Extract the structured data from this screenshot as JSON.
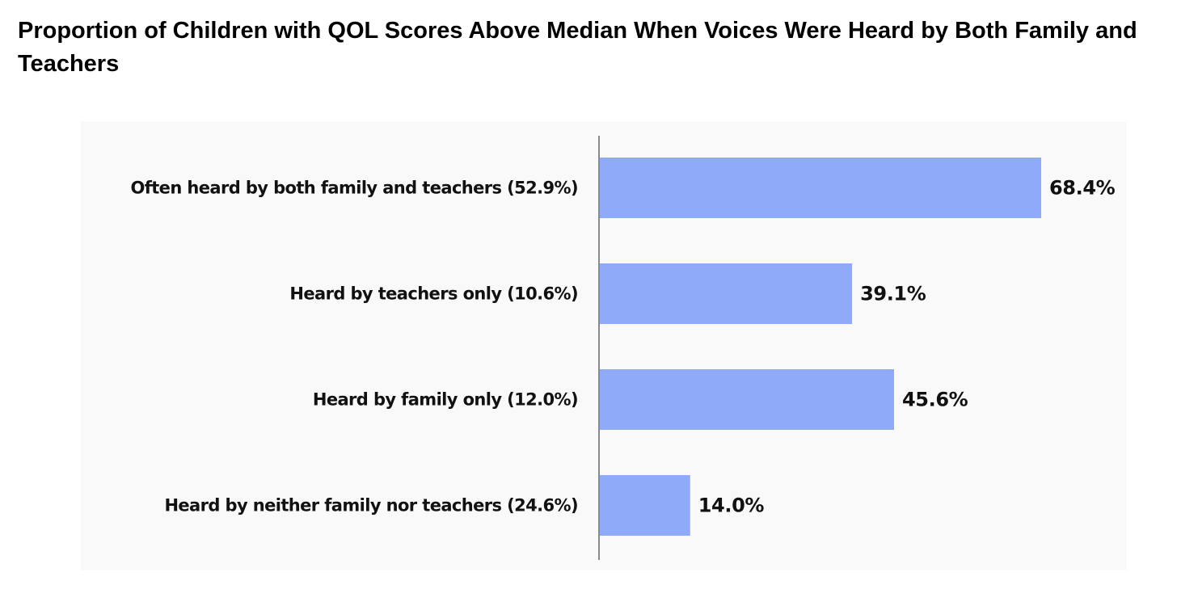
{
  "chart_data": {
    "type": "bar",
    "orientation": "horizontal",
    "title": "Proportion of Children with QOL Scores Above Median When Voices Were Heard by Both Family and Teachers",
    "categories": [
      "Often heard by both family and teachers (52.9%)",
      "Heard by teachers only (10.6%)",
      "Heard by family only (12.0%)",
      "Heard by neither family nor teachers (24.6%)"
    ],
    "values": [
      68.4,
      39.1,
      45.6,
      14.0
    ],
    "data_labels": [
      "68.4%",
      "39.1%",
      "45.6%",
      "14.0%"
    ],
    "xlim": [
      0,
      100
    ],
    "grid": false,
    "legend": "none",
    "colors": {
      "bar": "#8eaaf8",
      "plot_background": "#f9f9f9",
      "axis": "#8a8a8a"
    }
  }
}
